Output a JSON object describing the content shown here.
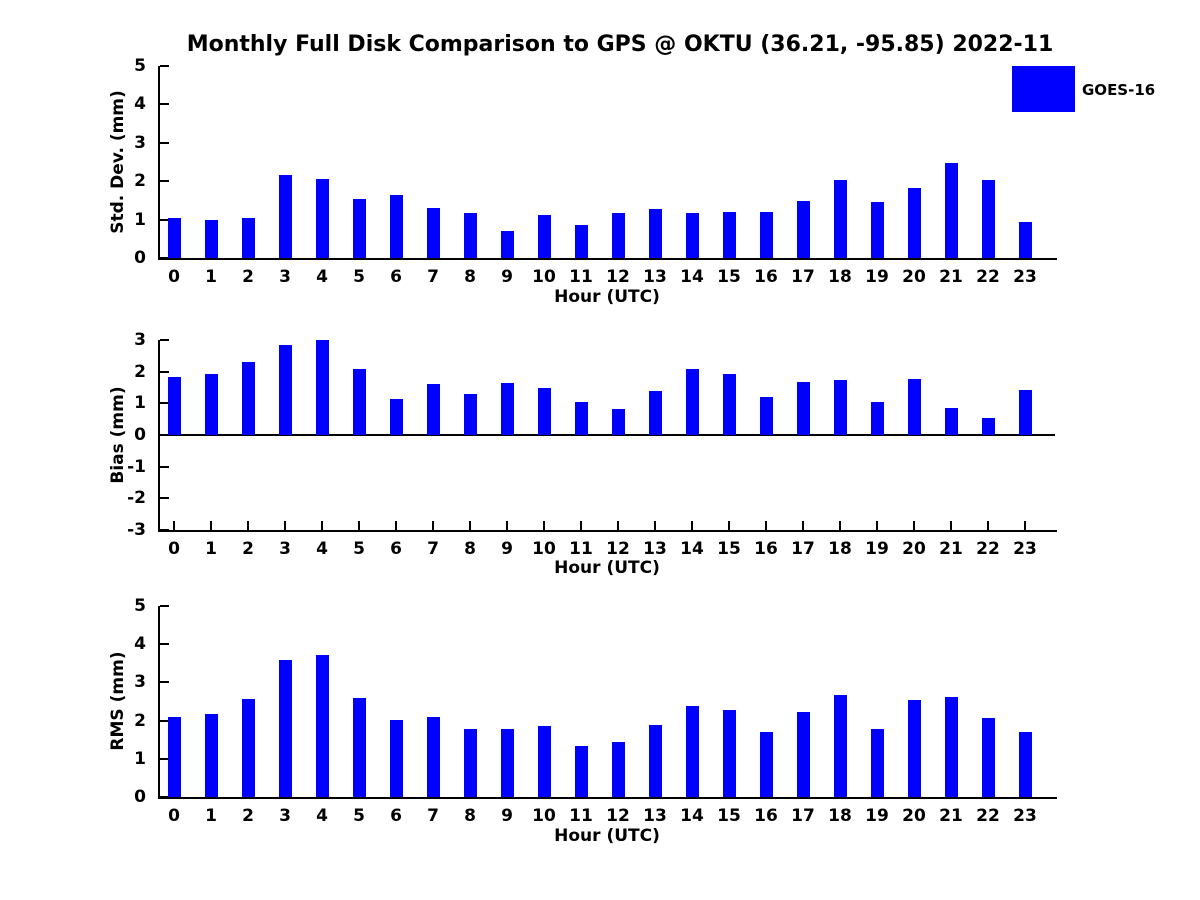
{
  "title": "Monthly Full Disk Comparison to GPS @ OKTU (36.21, -95.85) 2022-11",
  "legend": {
    "label": "GOES-16",
    "position": "top-right"
  },
  "colors": {
    "bar": "#0000FF",
    "axis": "#000000",
    "background": "#FFFFFF",
    "text": "#000000"
  },
  "chart_data": [
    {
      "type": "bar",
      "name": "std-dev",
      "ylabel": "Std. Dev. (mm)",
      "xlabel": "Hour (UTC)",
      "ylim": [
        0,
        5
      ],
      "yticks": [
        0,
        1,
        2,
        3,
        4,
        5
      ],
      "grid": false,
      "x_tick_marks": false,
      "categories": [
        "0",
        "1",
        "2",
        "3",
        "4",
        "5",
        "6",
        "7",
        "8",
        "9",
        "10",
        "11",
        "12",
        "13",
        "14",
        "15",
        "16",
        "17",
        "18",
        "19",
        "20",
        "21",
        "22",
        "23"
      ],
      "series": [
        {
          "name": "GOES-16",
          "values": [
            1.03,
            1.0,
            1.05,
            2.17,
            2.06,
            1.54,
            1.65,
            1.31,
            1.16,
            0.71,
            1.11,
            0.85,
            1.18,
            1.28,
            1.17,
            1.21,
            1.21,
            1.48,
            2.02,
            1.45,
            1.81,
            2.47,
            2.02,
            0.94
          ]
        }
      ]
    },
    {
      "type": "bar",
      "name": "bias",
      "ylabel": "Bias (mm)",
      "xlabel": "Hour (UTC)",
      "ylim": [
        -3,
        3
      ],
      "yticks": [
        -3,
        -2,
        -1,
        0,
        1,
        2,
        3
      ],
      "grid": false,
      "x_tick_marks": true,
      "categories": [
        "0",
        "1",
        "2",
        "3",
        "4",
        "5",
        "6",
        "7",
        "8",
        "9",
        "10",
        "11",
        "12",
        "13",
        "14",
        "15",
        "16",
        "17",
        "18",
        "19",
        "20",
        "21",
        "22",
        "23"
      ],
      "series": [
        {
          "name": "GOES-16",
          "values": [
            1.82,
            1.94,
            2.31,
            2.85,
            3.01,
            2.1,
            1.13,
            1.6,
            1.31,
            1.63,
            1.5,
            1.03,
            0.81,
            1.39,
            2.1,
            1.92,
            1.19,
            1.66,
            1.73,
            1.03,
            1.77,
            0.85,
            0.53,
            1.41
          ]
        }
      ]
    },
    {
      "type": "bar",
      "name": "rms",
      "ylabel": "RMS (mm)",
      "xlabel": "Hour (UTC)",
      "ylim": [
        0,
        5
      ],
      "yticks": [
        0,
        1,
        2,
        3,
        4,
        5
      ],
      "grid": false,
      "x_tick_marks": false,
      "categories": [
        "0",
        "1",
        "2",
        "3",
        "4",
        "5",
        "6",
        "7",
        "8",
        "9",
        "10",
        "11",
        "12",
        "13",
        "14",
        "15",
        "16",
        "17",
        "18",
        "19",
        "20",
        "21",
        "22",
        "23"
      ],
      "series": [
        {
          "name": "GOES-16",
          "values": [
            2.09,
            2.18,
            2.56,
            3.59,
            3.71,
            2.6,
            2.01,
            2.09,
            1.77,
            1.77,
            1.86,
            1.34,
            1.43,
            1.89,
            2.38,
            2.28,
            1.69,
            2.23,
            2.66,
            1.79,
            2.54,
            2.62,
            2.08,
            1.7
          ]
        }
      ]
    }
  ]
}
